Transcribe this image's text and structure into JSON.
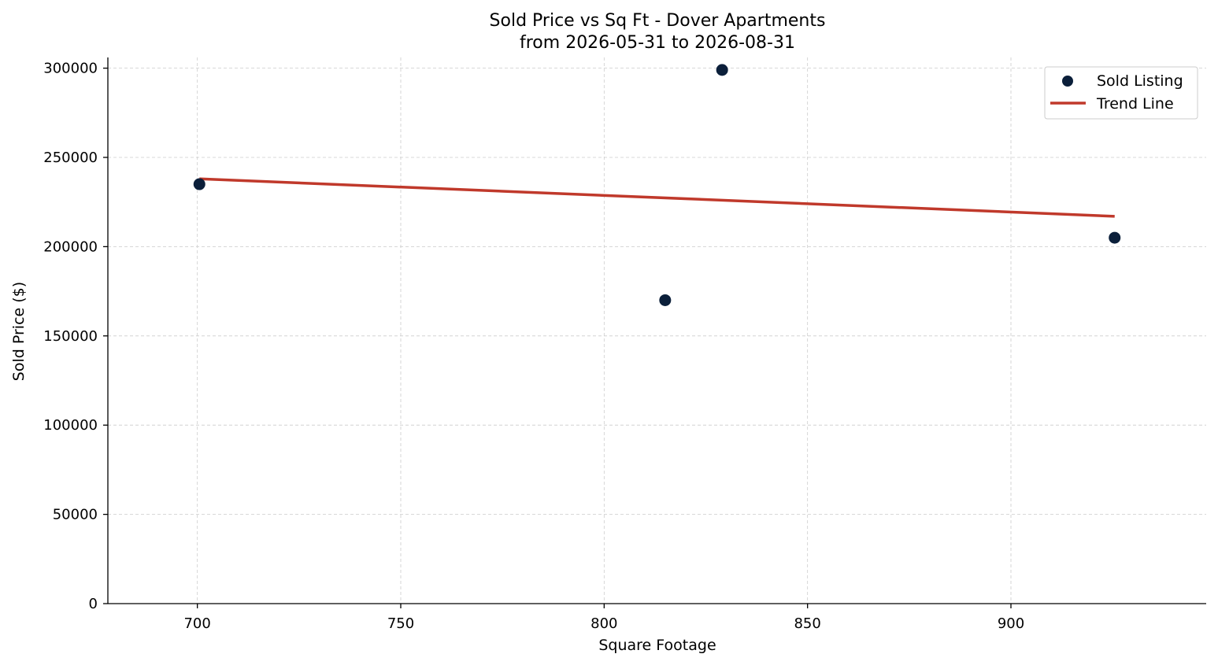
{
  "chart_data": {
    "type": "scatter",
    "title_line1": "Sold Price vs Sq Ft - Dover Apartments",
    "title_line2": "from 2026-05-31 to 2026-08-31",
    "xlabel": "Square Footage",
    "ylabel": "Sold Price ($)",
    "xlim": [
      678,
      948
    ],
    "ylim": [
      0,
      306000
    ],
    "x_ticks": [
      700,
      750,
      800,
      850,
      900
    ],
    "y_ticks": [
      0,
      50000,
      100000,
      150000,
      200000,
      250000,
      300000
    ],
    "grid": true,
    "legend_position": "top-right",
    "series": [
      {
        "name": "Sold Listing",
        "kind": "scatter",
        "color": "#0b1f3a",
        "points": [
          {
            "x": 700.5,
            "y": 235000
          },
          {
            "x": 815,
            "y": 170000
          },
          {
            "x": 829,
            "y": 299000
          },
          {
            "x": 925.5,
            "y": 205000
          }
        ]
      },
      {
        "name": "Trend Line",
        "kind": "line",
        "color": "#c0392b",
        "points": [
          {
            "x": 700.5,
            "y": 238000
          },
          {
            "x": 925.5,
            "y": 217000
          }
        ]
      }
    ]
  }
}
